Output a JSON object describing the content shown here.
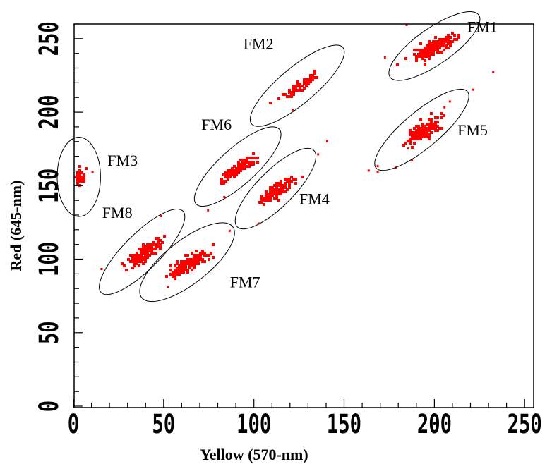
{
  "chart_data": {
    "type": "scatter",
    "title": "",
    "xlabel": "Yellow (570-nm)",
    "ylabel": "Red (645-nm)",
    "xlim": [
      0,
      255
    ],
    "ylim": [
      0,
      260
    ],
    "x_ticks": [
      "0",
      "50",
      "100",
      "150",
      "200",
      "250"
    ],
    "y_ticks": [
      "0",
      "50",
      "100",
      "150",
      "200",
      "250"
    ],
    "grid": false,
    "legend": "none",
    "point_color": "#ff0000",
    "clusters": [
      {
        "label": "FM1",
        "cx": 200,
        "cy": 245,
        "rx": 30,
        "ry": 10,
        "angle": 35,
        "spread_major": 6,
        "spread_minor": 2.0,
        "n": 260
      },
      {
        "label": "FM2",
        "cx": 124,
        "cy": 218,
        "rx": 33,
        "ry": 10,
        "angle": 40,
        "spread_major": 6,
        "spread_minor": 1.2,
        "n": 90
      },
      {
        "label": "FM3",
        "cx": 3,
        "cy": 156,
        "rx": 12,
        "ry": 22,
        "angle": 0,
        "spread_major": 1.2,
        "spread_minor": 2.5,
        "n": 60
      },
      {
        "label": "FM4",
        "cx": 112,
        "cy": 148,
        "rx": 30,
        "ry": 10,
        "angle": 45,
        "spread_major": 6,
        "spread_minor": 2.0,
        "n": 160
      },
      {
        "label": "FM5",
        "cx": 193,
        "cy": 188,
        "rx": 33,
        "ry": 10,
        "angle": 40,
        "spread_major": 5,
        "spread_minor": 2.0,
        "n": 230
      },
      {
        "label": "FM6",
        "cx": 91,
        "cy": 163,
        "rx": 31,
        "ry": 10,
        "angle": 42,
        "spread_major": 5,
        "spread_minor": 1.5,
        "n": 160
      },
      {
        "label": "FM7",
        "cx": 63,
        "cy": 98,
        "rx": 32,
        "ry": 12,
        "angle": 38,
        "spread_major": 6,
        "spread_minor": 2.0,
        "n": 200
      },
      {
        "label": "FM8",
        "cx": 38,
        "cy": 105,
        "rx": 32,
        "ry": 10,
        "angle": 45,
        "spread_major": 6,
        "spread_minor": 2.0,
        "n": 180
      }
    ],
    "outliers": [
      [
        168,
        164
      ],
      [
        232,
        228
      ],
      [
        221,
        216
      ],
      [
        163,
        161
      ],
      [
        185,
        176
      ],
      [
        140,
        181
      ],
      [
        135,
        172
      ],
      [
        121,
        202
      ],
      [
        83,
        143
      ],
      [
        74,
        134
      ],
      [
        48,
        130
      ],
      [
        15,
        94
      ],
      [
        52,
        82
      ],
      [
        86,
        120
      ],
      [
        172,
        238
      ],
      [
        184,
        260
      ],
      [
        205,
        204
      ],
      [
        208,
        208
      ],
      [
        178,
        163
      ],
      [
        187,
        168
      ],
      [
        102,
        125
      ],
      [
        168,
        160
      ],
      [
        10,
        160
      ]
    ]
  }
}
